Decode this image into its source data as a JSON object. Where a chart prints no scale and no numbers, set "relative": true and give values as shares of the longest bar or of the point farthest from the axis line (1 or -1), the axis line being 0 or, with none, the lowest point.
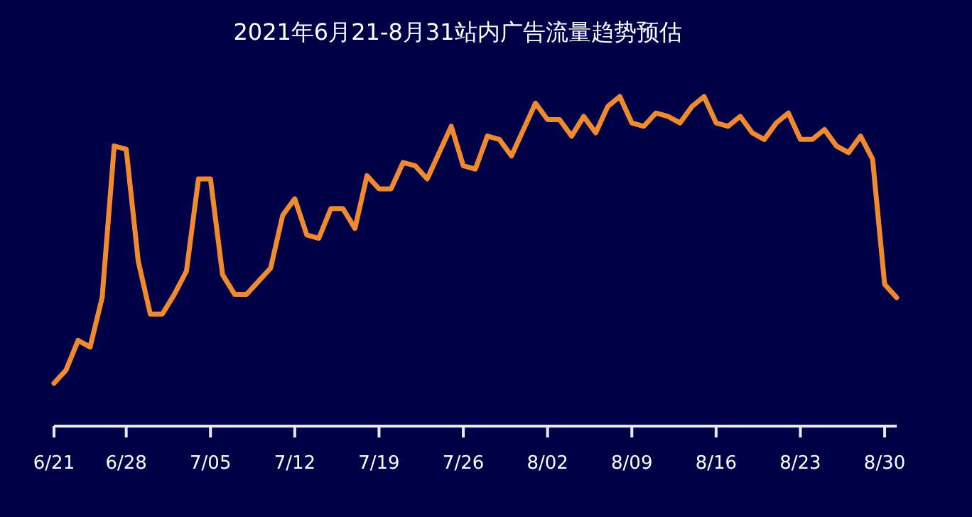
{
  "chart_data": {
    "type": "line",
    "title": "2021年6月21-8月31站内广告流量趋势预估",
    "relative": true,
    "color": "#f08a30",
    "marker": "none",
    "line_style": "solid",
    "categories": [
      "6/21",
      null,
      null,
      null,
      null,
      null,
      "6/28",
      null,
      null,
      null,
      null,
      null,
      null,
      "7/05",
      null,
      null,
      null,
      null,
      null,
      null,
      "7/12",
      null,
      null,
      null,
      null,
      null,
      null,
      "7/19",
      null,
      null,
      null,
      null,
      null,
      null,
      "7/26",
      null,
      null,
      null,
      null,
      null,
      null,
      "8/02",
      null,
      null,
      null,
      null,
      null,
      null,
      "8/09",
      null,
      null,
      null,
      null,
      null,
      null,
      "8/16",
      null,
      null,
      null,
      null,
      null,
      null,
      "8/23",
      null,
      null,
      null,
      null,
      null,
      null,
      "8/30",
      null
    ],
    "values": [
      0.13,
      0.17,
      0.26,
      0.24,
      0.39,
      0.85,
      0.84,
      0.5,
      0.34,
      0.34,
      0.4,
      0.47,
      0.75,
      0.75,
      0.46,
      0.4,
      0.4,
      0.44,
      0.48,
      0.64,
      0.69,
      0.58,
      0.57,
      0.66,
      0.66,
      0.6,
      0.76,
      0.72,
      0.72,
      0.8,
      0.79,
      0.75,
      0.83,
      0.91,
      0.79,
      0.78,
      0.88,
      0.87,
      0.82,
      0.9,
      0.98,
      0.93,
      0.93,
      0.88,
      0.94,
      0.89,
      0.97,
      1.0,
      0.92,
      0.91,
      0.95,
      0.94,
      0.92,
      0.97,
      1.0,
      0.92,
      0.91,
      0.94,
      0.89,
      0.87,
      0.92,
      0.95,
      0.87,
      0.87,
      0.9,
      0.85,
      0.83,
      0.88,
      0.81,
      0.43,
      0.39
    ]
  }
}
